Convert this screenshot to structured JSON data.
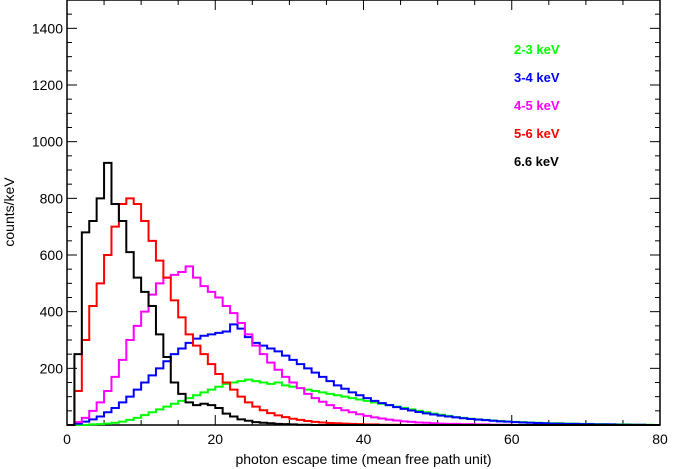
{
  "chart_data": {
    "type": "line",
    "xlabel": "photon escape time (mean free path unit)",
    "ylabel": "counts/keV",
    "xlim": [
      0,
      80
    ],
    "ylim": [
      0,
      1500
    ],
    "xticks": [
      0,
      20,
      40,
      60,
      80
    ],
    "yticks": [
      200,
      400,
      600,
      800,
      1000,
      1200,
      1400
    ],
    "grid": false,
    "legend_placement": "top-right",
    "bin_width": 1,
    "series": [
      {
        "name": "2-3 keV",
        "color": "#00ff00",
        "x": [
          0,
          1,
          2,
          3,
          4,
          5,
          6,
          7,
          8,
          9,
          10,
          11,
          12,
          13,
          14,
          15,
          16,
          17,
          18,
          19,
          20,
          21,
          22,
          23,
          24,
          25,
          26,
          27,
          28,
          29,
          30,
          31,
          32,
          33,
          34,
          35,
          36,
          37,
          38,
          39,
          40,
          41,
          42,
          43,
          44,
          45,
          46,
          47,
          48,
          49,
          50,
          51,
          52,
          53,
          54,
          55,
          56,
          57,
          58,
          59,
          60,
          61,
          62,
          63,
          64,
          65,
          66,
          67,
          68,
          69,
          70,
          71,
          72,
          73,
          74,
          75,
          76,
          77,
          78,
          79
        ],
        "values": [
          0,
          0,
          0,
          2,
          3,
          5,
          8,
          12,
          18,
          25,
          35,
          45,
          55,
          65,
          75,
          85,
          95,
          105,
          115,
          125,
          135,
          145,
          150,
          155,
          160,
          155,
          150,
          145,
          150,
          140,
          135,
          130,
          125,
          120,
          115,
          110,
          105,
          100,
          95,
          90,
          85,
          80,
          75,
          70,
          65,
          60,
          55,
          50,
          45,
          40,
          36,
          32,
          28,
          25,
          22,
          20,
          18,
          16,
          14,
          12,
          11,
          10,
          9,
          8,
          7,
          6,
          6,
          5,
          5,
          4,
          4,
          3,
          3,
          2,
          2,
          2,
          1,
          1,
          1,
          0
        ]
      },
      {
        "name": "3-4 keV",
        "color": "#0000ff",
        "x": [
          0,
          1,
          2,
          3,
          4,
          5,
          6,
          7,
          8,
          9,
          10,
          11,
          12,
          13,
          14,
          15,
          16,
          17,
          18,
          19,
          20,
          21,
          22,
          23,
          24,
          25,
          26,
          27,
          28,
          29,
          30,
          31,
          32,
          33,
          34,
          35,
          36,
          37,
          38,
          39,
          40,
          41,
          42,
          43,
          44,
          45,
          46,
          47,
          48,
          49,
          50,
          51,
          52,
          53,
          54,
          55,
          56,
          57,
          58,
          59,
          60,
          61,
          62,
          63,
          64,
          65,
          66,
          67,
          68,
          69,
          70,
          71,
          72,
          73,
          74,
          75,
          76,
          77,
          78,
          79
        ],
        "values": [
          0,
          5,
          12,
          20,
          30,
          45,
          60,
          80,
          100,
          125,
          150,
          175,
          200,
          225,
          250,
          270,
          290,
          305,
          315,
          320,
          325,
          330,
          355,
          340,
          310,
          290,
          280,
          270,
          260,
          245,
          230,
          215,
          200,
          185,
          170,
          155,
          140,
          128,
          115,
          105,
          95,
          85,
          77,
          70,
          63,
          57,
          51,
          46,
          41,
          37,
          33,
          30,
          27,
          24,
          21,
          19,
          17,
          15,
          13,
          12,
          10,
          9,
          8,
          7,
          6,
          5,
          5,
          4,
          4,
          3,
          3,
          2,
          2,
          2,
          1,
          1,
          1,
          1,
          0,
          0
        ]
      },
      {
        "name": "4-5 keV",
        "color": "#ff00ff",
        "x": [
          0,
          1,
          2,
          3,
          4,
          5,
          6,
          7,
          8,
          9,
          10,
          11,
          12,
          13,
          14,
          15,
          16,
          17,
          18,
          19,
          20,
          21,
          22,
          23,
          24,
          25,
          26,
          27,
          28,
          29,
          30,
          31,
          32,
          33,
          34,
          35,
          36,
          37,
          38,
          39,
          40,
          41,
          42,
          43,
          44,
          45,
          46,
          47,
          48,
          49,
          50,
          51,
          52,
          53,
          54,
          55,
          56,
          57,
          58,
          59,
          60,
          61,
          62,
          63,
          64,
          65,
          66,
          67,
          68,
          69,
          70,
          71,
          72,
          73,
          74,
          75,
          76,
          77,
          78,
          79
        ],
        "values": [
          0,
          10,
          25,
          50,
          80,
          120,
          170,
          230,
          300,
          350,
          400,
          460,
          500,
          520,
          530,
          540,
          560,
          520,
          490,
          470,
          450,
          420,
          395,
          360,
          320,
          280,
          250,
          220,
          195,
          170,
          150,
          130,
          110,
          95,
          82,
          70,
          60,
          52,
          45,
          38,
          32,
          27,
          23,
          19,
          16,
          13,
          11,
          9,
          8,
          6,
          5,
          4,
          4,
          3,
          3,
          2,
          2,
          1,
          1,
          1,
          0,
          0,
          0,
          0,
          0,
          0,
          0,
          0,
          0,
          0,
          0,
          0,
          0,
          0,
          0,
          0,
          0,
          0,
          0,
          0
        ]
      },
      {
        "name": "5-6 keV",
        "color": "#ff0000",
        "x": [
          0,
          1,
          2,
          3,
          4,
          5,
          6,
          7,
          8,
          9,
          10,
          11,
          12,
          13,
          14,
          15,
          16,
          17,
          18,
          19,
          20,
          21,
          22,
          23,
          24,
          25,
          26,
          27,
          28,
          29,
          30,
          31,
          32,
          33,
          34,
          35,
          36,
          37,
          38,
          39,
          40,
          41,
          42,
          43,
          44,
          45,
          46,
          47,
          48,
          49,
          50,
          51,
          52,
          53,
          54,
          55,
          56,
          57,
          58,
          59,
          60,
          61,
          62,
          63,
          64,
          65,
          66,
          67,
          68,
          69,
          70,
          71,
          72,
          73,
          74,
          75,
          76,
          77,
          78,
          79
        ],
        "values": [
          0,
          120,
          300,
          420,
          500,
          600,
          700,
          780,
          800,
          780,
          720,
          650,
          580,
          520,
          440,
          380,
          320,
          280,
          250,
          215,
          180,
          150,
          125,
          100,
          80,
          65,
          52,
          42,
          34,
          28,
          22,
          18,
          14,
          11,
          9,
          7,
          6,
          5,
          4,
          3,
          2,
          2,
          1,
          1,
          1,
          0,
          0,
          0,
          0,
          0,
          0,
          0,
          0,
          0,
          0,
          0,
          0,
          0,
          0,
          0,
          0,
          0,
          0,
          0,
          0,
          0,
          0,
          0,
          0,
          0,
          0,
          0,
          0,
          0,
          0,
          0,
          0,
          0,
          0,
          0
        ]
      },
      {
        "name": "6.6 keV",
        "color": "#000000",
        "x": [
          0,
          1,
          2,
          3,
          4,
          5,
          6,
          7,
          8,
          9,
          10,
          11,
          12,
          13,
          14,
          15,
          16,
          17,
          18,
          19,
          20,
          21,
          22,
          23,
          24,
          25,
          26,
          27,
          28,
          29,
          30,
          31,
          32,
          33,
          34,
          35,
          36,
          37,
          38,
          39,
          40,
          41,
          42,
          43,
          44,
          45,
          46,
          47,
          48,
          49,
          50,
          51,
          52,
          53,
          54,
          55,
          56,
          57,
          58,
          59,
          60,
          61,
          62,
          63,
          64,
          65,
          66,
          67,
          68,
          69,
          70,
          71,
          72,
          73,
          74,
          75,
          76,
          77,
          78,
          79
        ],
        "values": [
          0,
          250,
          680,
          720,
          800,
          925,
          780,
          720,
          610,
          520,
          470,
          420,
          320,
          240,
          150,
          110,
          80,
          70,
          75,
          70,
          60,
          40,
          30,
          20,
          15,
          10,
          8,
          6,
          4,
          3,
          2,
          1,
          1,
          0,
          0,
          0,
          0,
          0,
          0,
          0,
          0,
          0,
          0,
          0,
          0,
          0,
          0,
          0,
          0,
          0,
          0,
          0,
          0,
          0,
          0,
          0,
          0,
          0,
          0,
          0,
          0,
          0,
          0,
          0,
          0,
          0,
          0,
          0,
          0,
          0,
          0,
          0,
          0,
          0,
          0,
          0,
          0,
          0,
          0,
          0
        ]
      }
    ]
  }
}
